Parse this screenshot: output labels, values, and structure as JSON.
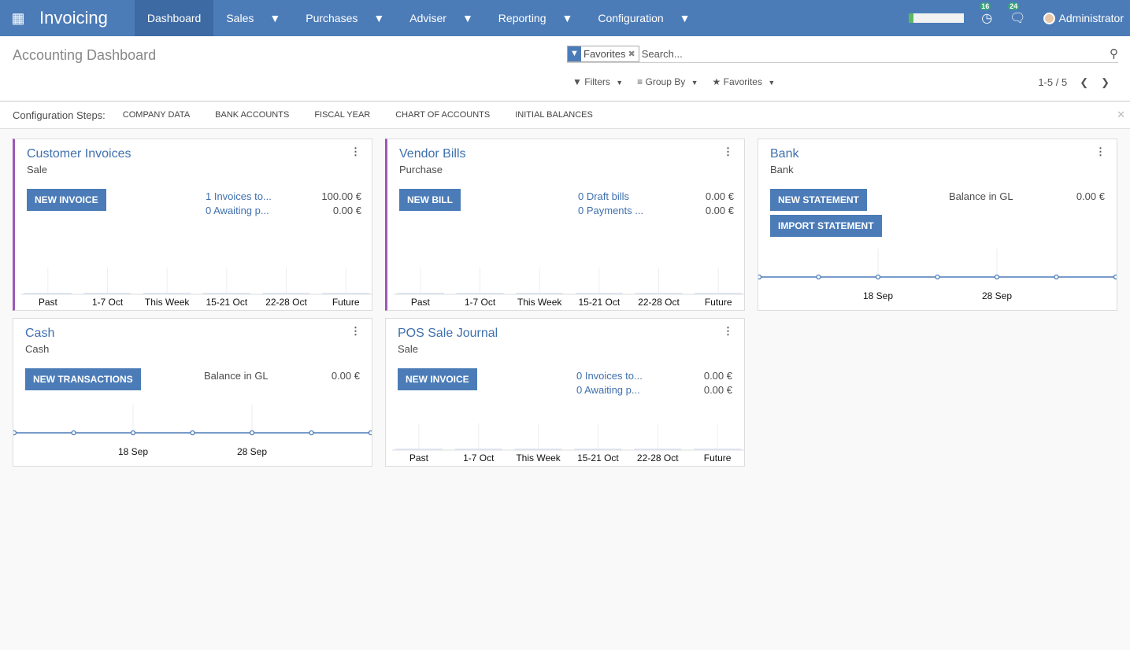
{
  "nav": {
    "app": "Invoicing",
    "menu": [
      {
        "label": "Dashboard",
        "caret": false
      },
      {
        "label": "Sales",
        "caret": true
      },
      {
        "label": "Purchases",
        "caret": true
      },
      {
        "label": "Adviser",
        "caret": true
      },
      {
        "label": "Reporting",
        "caret": true
      },
      {
        "label": "Configuration",
        "caret": true
      }
    ],
    "activities_count": "16",
    "messages_count": "24",
    "user": "Administrator"
  },
  "control": {
    "title": "Accounting Dashboard",
    "facet": "Favorites",
    "search_placeholder": "Search...",
    "filters": "Filters",
    "group_by": "Group By",
    "favorites": "Favorites",
    "pager": "1-5 / 5"
  },
  "steps": {
    "label": "Configuration Steps:",
    "items": [
      "Company Data",
      "Bank Accounts",
      "Fiscal Year",
      "Chart of Accounts",
      "Initial Balances"
    ]
  },
  "colors": {
    "navbar": "#4c7cb8",
    "accent": "#3f70ad",
    "sale_border": "#9b59b6"
  },
  "cards": [
    {
      "title": "Customer Invoices",
      "subtitle": "Sale",
      "buttons": [
        "NEW INVOICE"
      ],
      "rows": [
        {
          "label": "1 Invoices to...",
          "value": "100.00 €",
          "link": true
        },
        {
          "label": "0 Awaiting p...",
          "value": "0.00 €",
          "link": true
        }
      ],
      "chart": {
        "type": "bar",
        "categories": [
          "Past",
          "1-7 Oct",
          "This Week",
          "15-21 Oct",
          "22-28 Oct",
          "Future"
        ],
        "values": [
          0,
          0,
          0,
          0,
          0,
          0
        ]
      }
    },
    {
      "title": "Vendor Bills",
      "subtitle": "Purchase",
      "buttons": [
        "NEW BILL"
      ],
      "rows": [
        {
          "label": "0 Draft bills",
          "value": "0.00 €",
          "link": true
        },
        {
          "label": "0 Payments ...",
          "value": "0.00 €",
          "link": true
        }
      ],
      "chart": {
        "type": "bar",
        "categories": [
          "Past",
          "1-7 Oct",
          "This Week",
          "15-21 Oct",
          "22-28 Oct",
          "Future"
        ],
        "values": [
          0,
          0,
          0,
          0,
          0,
          0
        ]
      }
    },
    {
      "title": "Bank",
      "subtitle": "Bank",
      "buttons": [
        "NEW STATEMENT",
        "IMPORT STATEMENT"
      ],
      "rows": [
        {
          "label": "Balance in GL",
          "value": "0.00 €",
          "link": false
        }
      ],
      "chart": {
        "type": "line",
        "tick_labels": [
          "18 Sep",
          "28 Sep"
        ],
        "values": [
          0,
          0,
          0,
          0,
          0,
          0,
          0
        ]
      }
    },
    {
      "title": "Cash",
      "subtitle": "Cash",
      "buttons": [
        "NEW TRANSACTIONS"
      ],
      "rows": [
        {
          "label": "Balance in GL",
          "value": "0.00 €",
          "link": false
        }
      ],
      "chart": {
        "type": "line",
        "tick_labels": [
          "18 Sep",
          "28 Sep"
        ],
        "values": [
          0,
          0,
          0,
          0,
          0,
          0,
          0
        ]
      }
    },
    {
      "title": "POS Sale Journal",
      "subtitle": "Sale",
      "buttons": [
        "NEW INVOICE"
      ],
      "rows": [
        {
          "label": "0 Invoices to...",
          "value": "0.00 €",
          "link": true
        },
        {
          "label": "0 Awaiting p...",
          "value": "0.00 €",
          "link": true
        }
      ],
      "chart": {
        "type": "bar",
        "categories": [
          "Past",
          "1-7 Oct",
          "This Week",
          "15-21 Oct",
          "22-28 Oct",
          "Future"
        ],
        "values": [
          0,
          0,
          0,
          0,
          0,
          0
        ]
      }
    }
  ]
}
